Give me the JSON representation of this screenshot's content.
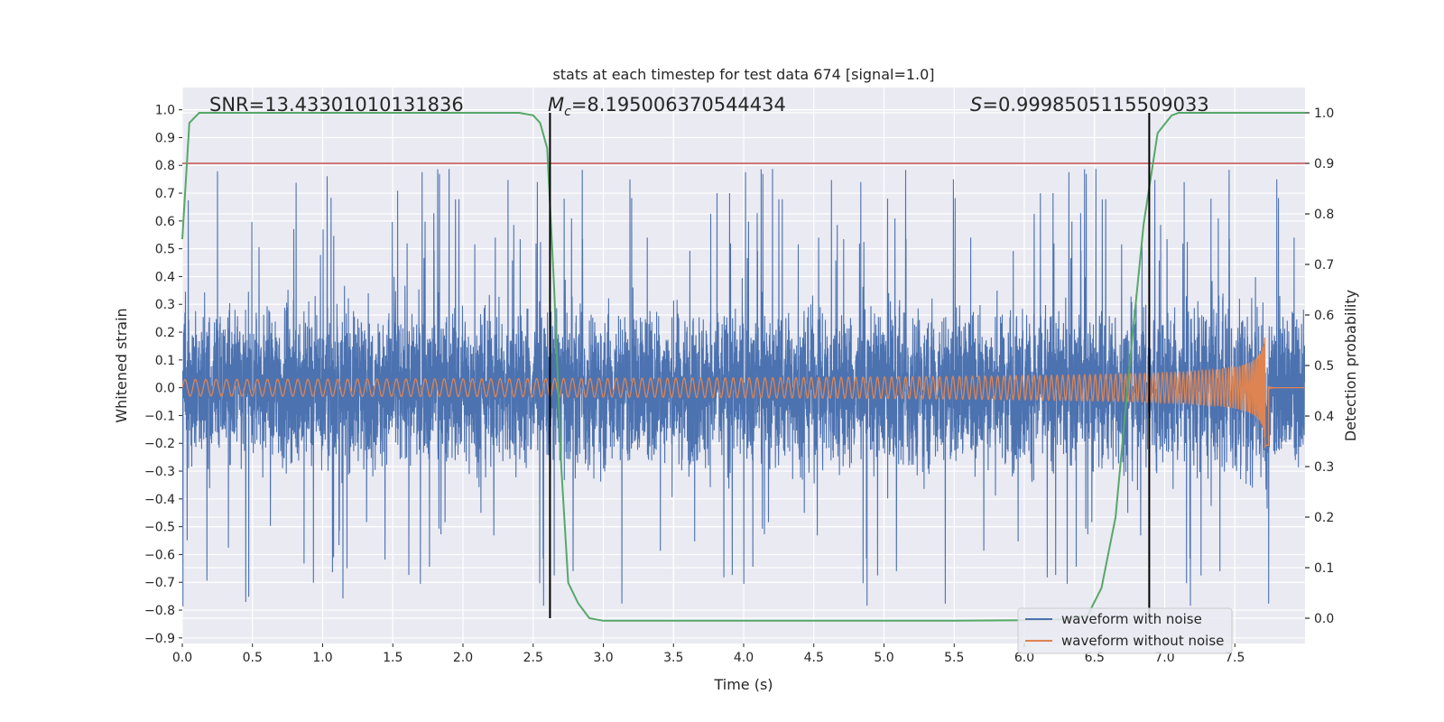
{
  "chart_data": {
    "type": "line",
    "title": "stats at each timestep for test data 674 [signal=1.0]",
    "xlabel": "Time (s)",
    "ylabel": "Whitened strain",
    "y2label": "Detection probability",
    "xlim": [
      0.0,
      8.0
    ],
    "ylim": [
      -0.92,
      1.08
    ],
    "y2lim": [
      -0.05,
      1.05
    ],
    "x_ticks": [
      0.0,
      0.5,
      1.0,
      1.5,
      2.0,
      2.5,
      3.0,
      3.5,
      4.0,
      4.5,
      5.0,
      5.5,
      6.0,
      6.5,
      7.0,
      7.5
    ],
    "x_tick_labels": [
      "0.0",
      "0.5",
      "1.0",
      "1.5",
      "2.0",
      "2.5",
      "3.0",
      "3.5",
      "4.0",
      "4.5",
      "5.0",
      "5.5",
      "6.0",
      "6.5",
      "7.0",
      "7.5"
    ],
    "y_ticks": [
      1.0,
      0.9,
      0.8,
      0.7,
      0.6,
      0.5,
      0.4,
      0.3,
      0.2,
      0.1,
      0.0,
      -0.1,
      -0.2,
      -0.3,
      -0.4,
      -0.5,
      -0.6,
      -0.7,
      -0.8,
      -0.9
    ],
    "y_tick_labels": [
      "1.0",
      "0.9",
      "0.8",
      "0.7",
      "0.6",
      "0.5",
      "0.4",
      "0.3",
      "0.2",
      "0.1",
      "0.0",
      "−0.1",
      "−0.2",
      "−0.3",
      "−0.4",
      "−0.5",
      "−0.6",
      "−0.7",
      "−0.8",
      "−0.9"
    ],
    "y2_ticks": [
      1.0,
      0.9,
      0.8,
      0.7,
      0.6,
      0.5,
      0.4,
      0.3,
      0.2,
      0.1,
      0.0
    ],
    "y2_tick_labels": [
      "1.0",
      "0.9",
      "0.8",
      "0.7",
      "0.6",
      "0.5",
      "0.4",
      "0.3",
      "0.2",
      "0.1",
      "0.0"
    ],
    "annotations": {
      "snr": "SNR=13.43301010131836",
      "mc_symbol": "M",
      "mc_subscript": "c",
      "mc_value": "=8.195006370544434",
      "s_symbol": "S",
      "s_value": "=0.9998505115509033"
    },
    "threshold_y2": 0.9,
    "vertical_lines_x": [
      2.62,
      6.89
    ],
    "detection_probability": {
      "x": [
        0.0,
        0.05,
        0.12,
        0.3,
        0.6,
        1.0,
        1.5,
        2.0,
        2.4,
        2.5,
        2.55,
        2.6,
        2.65,
        2.7,
        2.75,
        2.82,
        2.9,
        3.0,
        3.5,
        4.0,
        4.5,
        5.0,
        5.5,
        6.0,
        6.3,
        6.45,
        6.55,
        6.65,
        6.75,
        6.85,
        6.95,
        7.05,
        7.1,
        7.2,
        7.5,
        8.0
      ],
      "y": [
        0.75,
        0.98,
        1.0,
        1.0,
        1.0,
        1.0,
        1.0,
        1.0,
        1.0,
        0.995,
        0.98,
        0.93,
        0.65,
        0.3,
        0.07,
        0.03,
        0.0,
        -0.005,
        -0.005,
        -0.005,
        -0.005,
        -0.005,
        -0.005,
        -0.004,
        -0.002,
        0.005,
        0.06,
        0.2,
        0.5,
        0.78,
        0.96,
        0.995,
        1.0,
        1.0,
        1.0,
        1.0
      ]
    },
    "series": [
      {
        "name": "waveform with noise",
        "color": "#4c72b0",
        "amplitude_envelope": [
          -0.85,
          0.85
        ]
      },
      {
        "name": "waveform without noise",
        "color": "#dd8452",
        "start_amplitude": 0.03,
        "peak_amplitude": 0.33,
        "merger_time": 7.72
      }
    ],
    "colors": {
      "background": "#eaeaf2",
      "grid": "#ffffff",
      "noise": "#4c72b0",
      "signal": "#dd8452",
      "probability": "#55a868",
      "threshold": "#c44e52",
      "marker": "#000000"
    },
    "legend": {
      "position": "lower-right",
      "items": [
        "waveform with noise",
        "waveform without noise"
      ]
    }
  }
}
